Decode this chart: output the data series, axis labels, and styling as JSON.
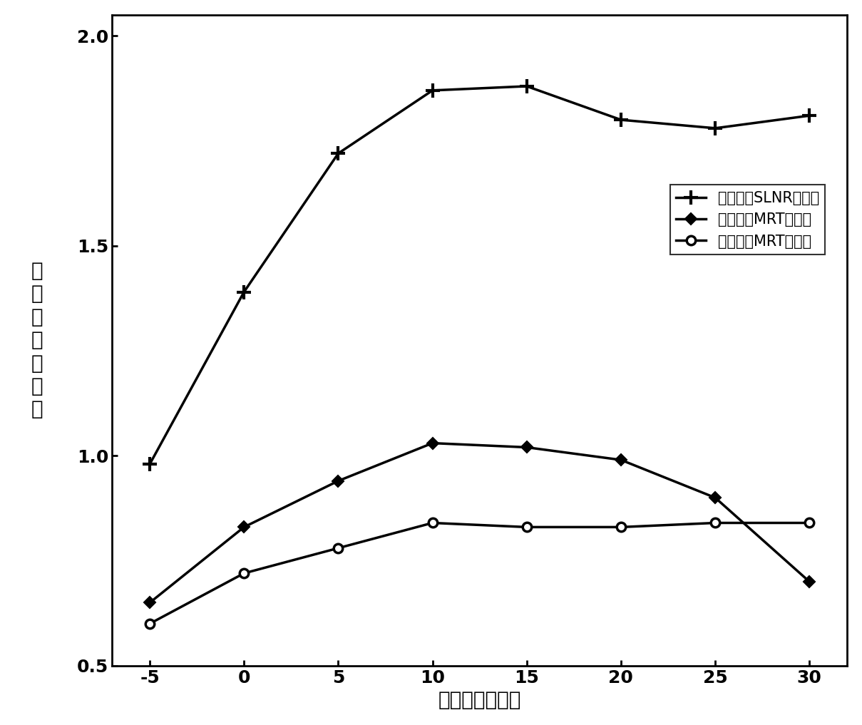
{
  "x": [
    -5,
    0,
    5,
    10,
    15,
    20,
    25,
    30
  ],
  "slnr_y": [
    0.98,
    1.39,
    1.72,
    1.87,
    1.88,
    1.8,
    1.78,
    1.81
  ],
  "mrt_shift_y": [
    0.65,
    0.83,
    0.94,
    1.03,
    1.02,
    0.99,
    0.9,
    0.7
  ],
  "mrt_align_y": [
    0.6,
    0.72,
    0.78,
    0.84,
    0.83,
    0.83,
    0.84,
    0.84
  ],
  "xlabel": "下行数据信噪比",
  "ylabel_chars": [
    "平",
    "均",
    "每",
    "用",
    "户",
    "容",
    "量"
  ],
  "label_slnr": "导频时移SLNR预编码",
  "label_mrt_shift": "导频时移MRT预编码",
  "label_mrt_align": "导频对齐MRT预编码",
  "xlim": [
    -7,
    32
  ],
  "ylim": [
    0.5,
    2.05
  ],
  "xticks": [
    -5,
    0,
    5,
    10,
    15,
    20,
    25,
    30
  ],
  "yticks": [
    0.5,
    1.0,
    1.5,
    2.0
  ],
  "line_color": "#000000",
  "linewidth": 2.5,
  "markersize": 9,
  "legend_fontsize": 15,
  "axis_fontsize": 20,
  "tick_fontsize": 18
}
